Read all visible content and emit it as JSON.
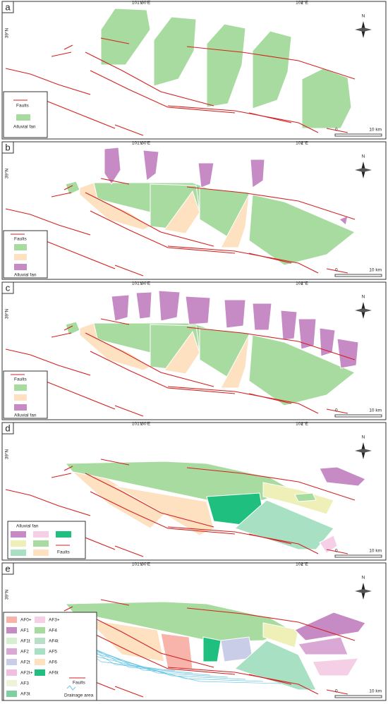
{
  "panels": [
    {
      "label": "a",
      "lon_labels": [
        "101°30'E",
        "102°E"
      ],
      "lat_label": "39°N",
      "north": "N",
      "scale": [
        "0",
        "10 km"
      ],
      "legend": {
        "faults": "Faults",
        "fan": "Alluvial fan"
      }
    },
    {
      "label": "b",
      "lon_labels": [
        "101°30'E",
        "102°E"
      ],
      "lat_label": "39°N",
      "north": "N",
      "scale": [
        "0",
        "10 km"
      ],
      "legend": {
        "faults": "Faults",
        "fan": "Alluvial fan"
      }
    },
    {
      "label": "c",
      "lon_labels": [
        "101°30'E",
        "102°E"
      ],
      "lat_label": "39°N",
      "north": "N",
      "scale": [
        "0",
        "10 km"
      ],
      "legend": {
        "faults": "Faults",
        "fan": "Alluvial fan"
      }
    },
    {
      "label": "d",
      "lon_labels": [
        "101°30'E",
        "102°E"
      ],
      "lat_label": "39°N",
      "north": "N",
      "scale": [
        "0",
        "10 km"
      ],
      "legend": {
        "fan": "Alluvial fan",
        "faults": "Faults"
      }
    },
    {
      "label": "e",
      "lon_labels": [
        "101°30'E",
        "102°E"
      ],
      "lat_label": "39°N",
      "north": "N",
      "scale": [
        "0",
        "10 km"
      ],
      "legend": {
        "items": [
          "AF0+",
          "AF1",
          "AF1t",
          "AF2",
          "AF2t",
          "AF2t+",
          "AF3",
          "AF3t",
          "AF3+",
          "AF4",
          "AF4t",
          "AF5",
          "AF6",
          "AF6t"
        ],
        "faults": "Faults",
        "drainage": "Drainage area"
      }
    }
  ]
}
